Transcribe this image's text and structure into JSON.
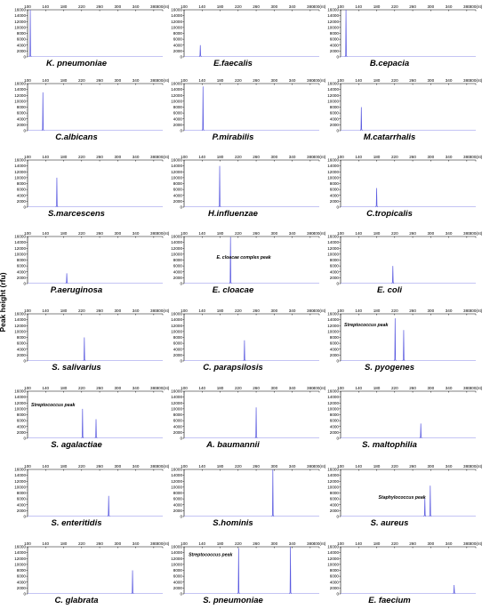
{
  "ylabel": "Peak height  (rfu)",
  "x_ticks": [
    "100",
    "140",
    "180",
    "220",
    "260",
    "300",
    "340",
    "380",
    "400(nt)"
  ],
  "y_ticks": [
    "0",
    "2000",
    "4000",
    "6000",
    "8000",
    "10000",
    "12000",
    "14000",
    "16000"
  ],
  "colors": {
    "peak": "#5a5ae0",
    "axis": "#000000",
    "baseline": "#8a8ae8"
  },
  "chart_data": [
    {
      "type": "line",
      "title": "K. pneumoniae",
      "xlim": [
        100,
        400
      ],
      "ylim": [
        0,
        16000
      ],
      "peaks": [
        {
          "x": 106,
          "y": 16000
        }
      ]
    },
    {
      "type": "line",
      "title": "E.faecalis",
      "xlim": [
        100,
        400
      ],
      "ylim": [
        0,
        16000
      ],
      "peaks": [
        {
          "x": 136,
          "y": 4000
        }
      ]
    },
    {
      "type": "line",
      "title": "B.cepacia",
      "xlim": [
        100,
        400
      ],
      "ylim": [
        0,
        16000
      ],
      "peaks": [
        {
          "x": 112,
          "y": 16000
        }
      ]
    },
    {
      "type": "line",
      "title": "C.albicans",
      "xlim": [
        100,
        400
      ],
      "ylim": [
        0,
        16000
      ],
      "peaks": [
        {
          "x": 134,
          "y": 13000
        }
      ]
    },
    {
      "type": "line",
      "title": "P.mirabilis",
      "xlim": [
        100,
        400
      ],
      "ylim": [
        0,
        16000
      ],
      "peaks": [
        {
          "x": 142,
          "y": 15000
        }
      ]
    },
    {
      "type": "line",
      "title": "M.catarrhalis",
      "xlim": [
        100,
        400
      ],
      "ylim": [
        0,
        16000
      ],
      "peaks": [
        {
          "x": 146,
          "y": 8000
        }
      ]
    },
    {
      "type": "line",
      "title": "S.marcescens",
      "xlim": [
        100,
        400
      ],
      "ylim": [
        0,
        16000
      ],
      "peaks": [
        {
          "x": 165,
          "y": 10000
        }
      ]
    },
    {
      "type": "line",
      "title": "H.influenzae",
      "xlim": [
        100,
        400
      ],
      "ylim": [
        0,
        16000
      ],
      "peaks": [
        {
          "x": 179,
          "y": 14000
        }
      ]
    },
    {
      "type": "line",
      "title": "C.tropicalis",
      "xlim": [
        100,
        400
      ],
      "ylim": [
        0,
        16000
      ],
      "peaks": [
        {
          "x": 180,
          "y": 6500
        }
      ]
    },
    {
      "type": "line",
      "title": "P.aeruginosa",
      "xlim": [
        100,
        400
      ],
      "ylim": [
        0,
        16000
      ],
      "peaks": [
        {
          "x": 187,
          "y": 3500
        }
      ]
    },
    {
      "type": "line",
      "title": "E. cloacae",
      "xlim": [
        100,
        400
      ],
      "ylim": [
        0,
        16000
      ],
      "peaks": [
        {
          "x": 203,
          "y": 15800
        }
      ],
      "annotation": {
        "text": "E. cloacae complex peak",
        "x": 172,
        "y": 8500
      }
    },
    {
      "type": "line",
      "title": "E. coli",
      "xlim": [
        100,
        400
      ],
      "ylim": [
        0,
        16000
      ],
      "peaks": [
        {
          "x": 216,
          "y": 6000
        }
      ]
    },
    {
      "type": "line",
      "title": "S. salivarius",
      "xlim": [
        100,
        400
      ],
      "ylim": [
        0,
        16000
      ],
      "peaks": [
        {
          "x": 226,
          "y": 8000
        }
      ]
    },
    {
      "type": "line",
      "title": "C. parapsilosis",
      "xlim": [
        100,
        400
      ],
      "ylim": [
        0,
        16000
      ],
      "peaks": [
        {
          "x": 234,
          "y": 7000
        }
      ]
    },
    {
      "type": "line",
      "title": "S. pyogenes",
      "xlim": [
        100,
        400
      ],
      "ylim": [
        0,
        16000
      ],
      "peaks": [
        {
          "x": 221,
          "y": 14500
        },
        {
          "x": 240,
          "y": 10500
        }
      ],
      "annotation": {
        "text": "Streptococcus peak",
        "x": 108,
        "y": 11800
      }
    },
    {
      "type": "line",
      "title": "S. agalactiae",
      "xlim": [
        100,
        400
      ],
      "ylim": [
        0,
        16000
      ],
      "peaks": [
        {
          "x": 222,
          "y": 10000
        },
        {
          "x": 252,
          "y": 6500
        }
      ],
      "annotation": {
        "text": "Streptococcus peak",
        "x": 108,
        "y": 10800
      }
    },
    {
      "type": "line",
      "title": "A. baumannii",
      "xlim": [
        100,
        400
      ],
      "ylim": [
        0,
        16000
      ],
      "peaks": [
        {
          "x": 260,
          "y": 10500
        }
      ]
    },
    {
      "type": "line",
      "title": "S. maltophilia",
      "xlim": [
        100,
        400
      ],
      "ylim": [
        0,
        16000
      ],
      "peaks": [
        {
          "x": 278,
          "y": 5000
        }
      ]
    },
    {
      "type": "line",
      "title": "S. enteritidis",
      "xlim": [
        100,
        400
      ],
      "ylim": [
        0,
        16000
      ],
      "peaks": [
        {
          "x": 280,
          "y": 7000
        }
      ]
    },
    {
      "type": "line",
      "title": "S.hominis",
      "xlim": [
        100,
        400
      ],
      "ylim": [
        0,
        16000
      ],
      "peaks": [
        {
          "x": 297,
          "y": 16000
        }
      ]
    },
    {
      "type": "line",
      "title": "S. aureus",
      "xlim": [
        100,
        400
      ],
      "ylim": [
        0,
        16000
      ],
      "peaks": [
        {
          "x": 287,
          "y": 6500
        },
        {
          "x": 299,
          "y": 10500
        }
      ],
      "annotation": {
        "text": "Staphylococcus peak",
        "x": 184,
        "y": 6000
      }
    },
    {
      "type": "line",
      "title": "C. glabrata",
      "xlim": [
        100,
        400
      ],
      "ylim": [
        0,
        16000
      ],
      "peaks": [
        {
          "x": 333,
          "y": 8000
        }
      ]
    },
    {
      "type": "line",
      "title": "S. pneumoniae",
      "xlim": [
        100,
        400
      ],
      "ylim": [
        0,
        16000
      ],
      "peaks": [
        {
          "x": 221,
          "y": 15500
        },
        {
          "x": 336,
          "y": 16000
        }
      ],
      "annotation": {
        "text": "Streptococcus peak",
        "x": 110,
        "y": 12800
      }
    },
    {
      "type": "line",
      "title": "E. faecium",
      "xlim": [
        100,
        400
      ],
      "ylim": [
        0,
        16000
      ],
      "peaks": [
        {
          "x": 352,
          "y": 3000
        }
      ]
    }
  ]
}
